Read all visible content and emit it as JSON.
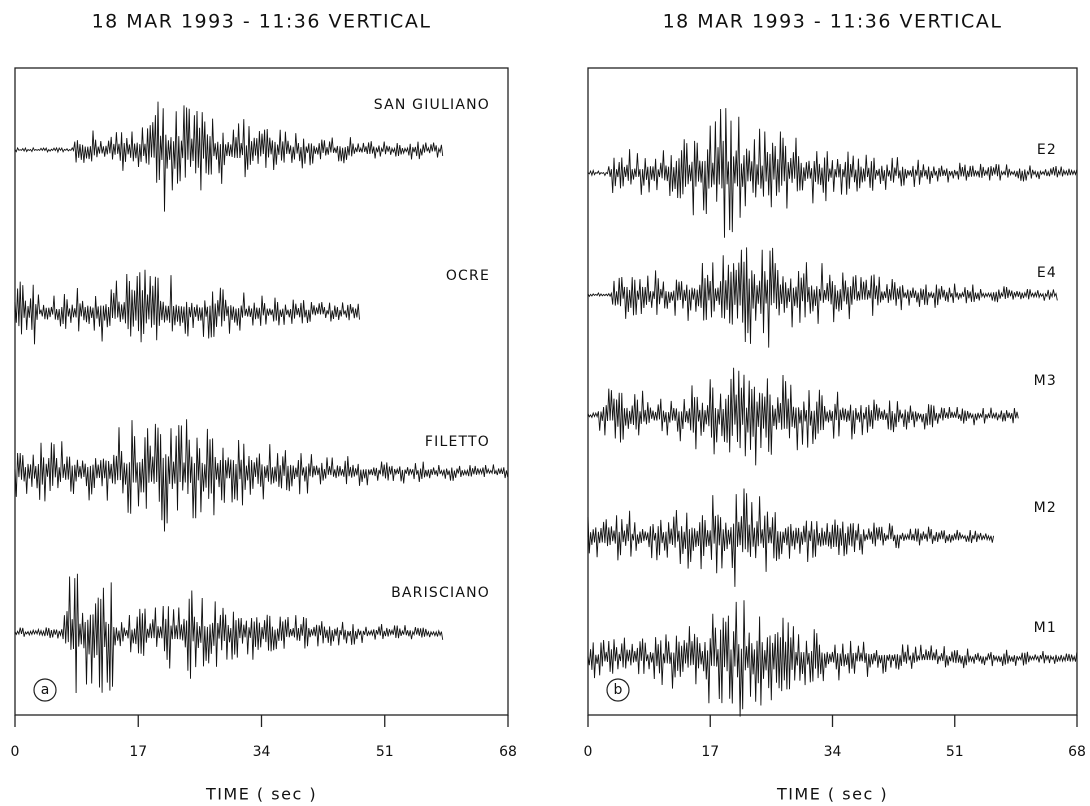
{
  "chart_data": [
    {
      "type": "seismogram",
      "title": "18 MAR 1993 - 11:36 VERTICAL",
      "xlabel": "TIME ( sec )",
      "xlim": [
        0,
        68
      ],
      "xticks": [
        0,
        17,
        34,
        51,
        68
      ],
      "panel_label": "a",
      "series": [
        {
          "name": "SAN GIULIANO"
        },
        {
          "name": "OCRE"
        },
        {
          "name": "FILETTO"
        },
        {
          "name": "BARISCIANO"
        }
      ]
    },
    {
      "type": "seismogram",
      "title": "18 MAR 1993 - 11:36 VERTICAL",
      "xlabel": "TIME ( sec )",
      "xlim": [
        0,
        68
      ],
      "xticks": [
        0,
        17,
        34,
        51,
        68
      ],
      "panel_label": "b",
      "series": [
        {
          "name": "E2"
        },
        {
          "name": "E4"
        },
        {
          "name": "M3"
        },
        {
          "name": "M2"
        },
        {
          "name": "M1"
        }
      ]
    }
  ]
}
